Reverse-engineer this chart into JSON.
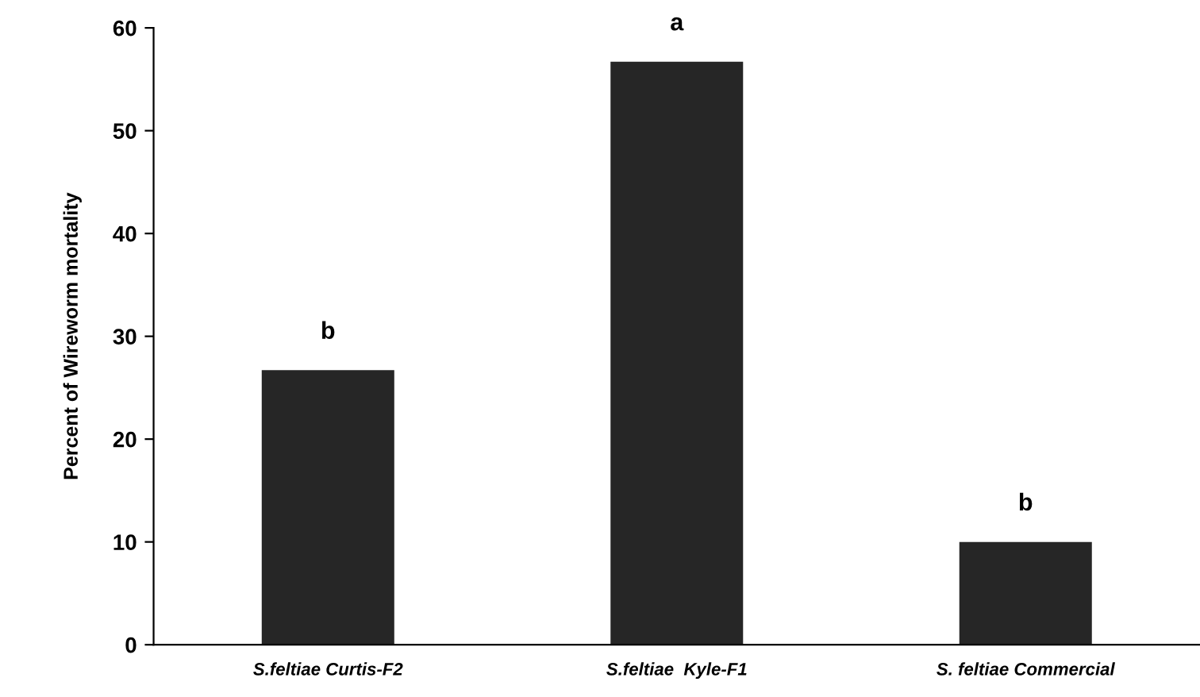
{
  "chart_data": {
    "type": "bar",
    "ylabel": "Percent of Wireworm mortality",
    "categories": [
      "S.feltiae Curtis-F2",
      "S.feltiae  Kyle-F1",
      "S. feltiae Commercial"
    ],
    "values": [
      26.7,
      56.7,
      10
    ],
    "color": "#262626",
    "ylim": [
      0,
      60
    ],
    "yticks": [
      0,
      10,
      20,
      30,
      40,
      50,
      60
    ],
    "grid": false,
    "annotations": [
      {
        "text": "b",
        "x": "S.feltiae Curtis-F2",
        "y": 26.7
      },
      {
        "text": "a",
        "x": "S.feltiae  Kyle-F1",
        "y": 56.7
      },
      {
        "text": "b",
        "x": "S. feltiae Commercial",
        "y": 10
      }
    ]
  }
}
